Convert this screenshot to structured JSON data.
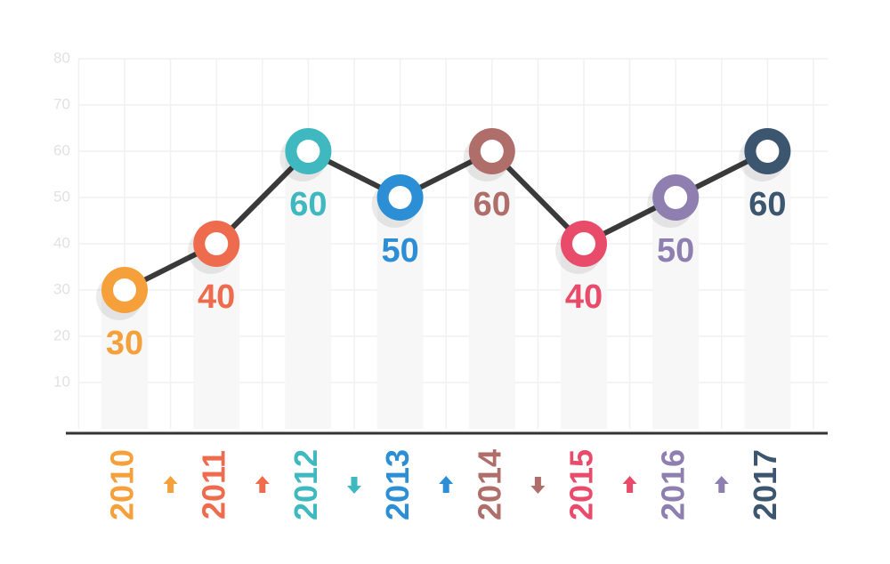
{
  "chart_data": {
    "type": "line",
    "categories": [
      "2010",
      "2011",
      "2012",
      "2013",
      "2014",
      "2015",
      "2016",
      "2017"
    ],
    "values": [
      30,
      40,
      60,
      50,
      60,
      40,
      50,
      60
    ],
    "colors": [
      "#f5a03a",
      "#ee6b4d",
      "#3fb8c0",
      "#2c8fd6",
      "#b06e6a",
      "#e94b6b",
      "#8e7fb0",
      "#3d5670"
    ],
    "line_color": "#3a3a3a",
    "ylim": [
      0,
      80
    ],
    "yticks": [
      10,
      20,
      30,
      40,
      50,
      60,
      70,
      80
    ],
    "grid": true
  }
}
